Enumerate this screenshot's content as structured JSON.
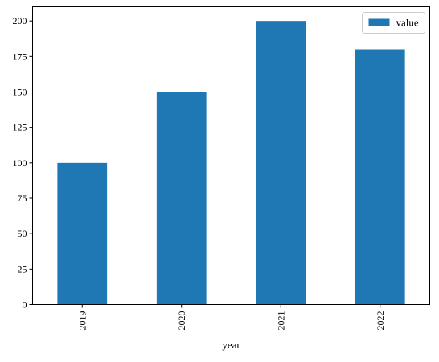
{
  "chart_data": {
    "type": "bar",
    "categories": [
      "2019",
      "2020",
      "2021",
      "2022"
    ],
    "series": [
      {
        "name": "value",
        "values": [
          100,
          150,
          200,
          180
        ],
        "color": "#1f77b4"
      }
    ],
    "xlabel": "year",
    "ylabel": "",
    "ylim": [
      0,
      210
    ],
    "yticks": [
      0,
      25,
      50,
      75,
      100,
      125,
      150,
      175,
      200
    ],
    "legend_position": "top-right",
    "grid": false
  }
}
